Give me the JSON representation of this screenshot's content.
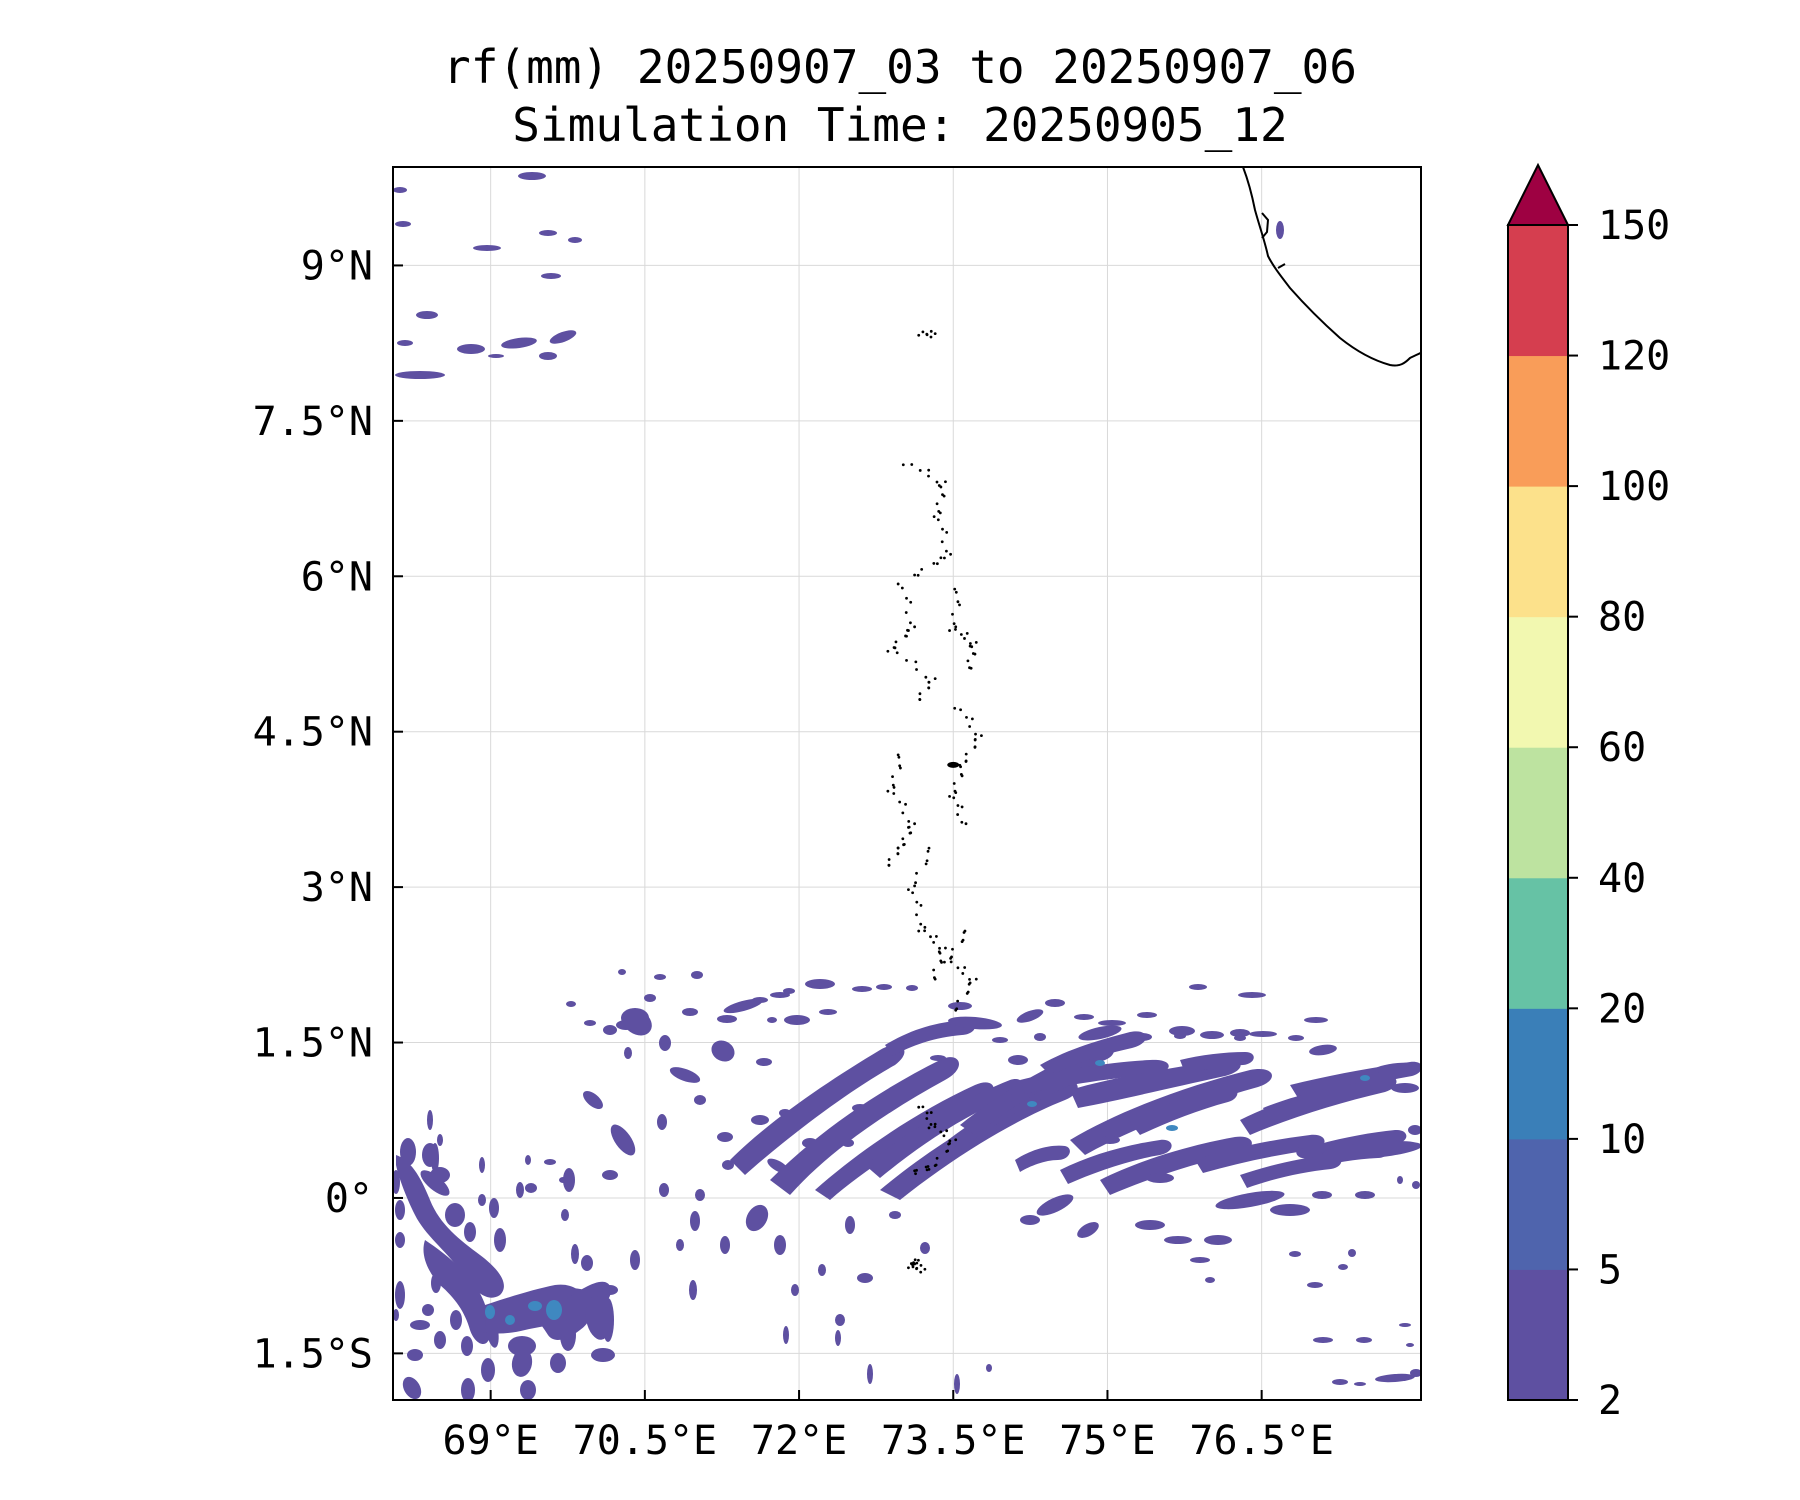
{
  "title": {
    "line1": "rf(mm) 20250907_03 to 20250907_06",
    "line2": "Simulation Time: 20250905_12"
  },
  "map": {
    "lon_range": [
      68.05,
      78.05
    ],
    "lat_range": [
      -1.95,
      9.95
    ],
    "lon_ticks": [
      {
        "value": 69.0,
        "label": "69°E"
      },
      {
        "value": 70.5,
        "label": "70.5°E"
      },
      {
        "value": 72.0,
        "label": "72°E"
      },
      {
        "value": 73.5,
        "label": "73.5°E"
      },
      {
        "value": 75.0,
        "label": "75°E"
      },
      {
        "value": 76.5,
        "label": "76.5°E"
      }
    ],
    "lat_ticks": [
      {
        "value": 9.0,
        "label": "9°N"
      },
      {
        "value": 7.5,
        "label": "7.5°N"
      },
      {
        "value": 6.0,
        "label": "6°N"
      },
      {
        "value": 4.5,
        "label": "4.5°N"
      },
      {
        "value": 3.0,
        "label": "3°N"
      },
      {
        "value": 1.5,
        "label": "1.5°N"
      },
      {
        "value": 0.0,
        "label": "0°"
      },
      {
        "value": -1.5,
        "label": "1.5°S"
      }
    ],
    "grid": true,
    "colors": {
      "rain_low": "#5e50a1",
      "rain_mid": "#3f88c0",
      "coast": "#000000"
    }
  },
  "colorbar": {
    "extend": "max",
    "levels": [
      {
        "label": "2",
        "color": "#5e50a1"
      },
      {
        "label": "5",
        "color": "#4f64ad"
      },
      {
        "label": "10",
        "color": "#3a7fb8"
      },
      {
        "label": "20",
        "color": "#66c2a5"
      },
      {
        "label": "40",
        "color": "#bde3a0"
      },
      {
        "label": "60",
        "color": "#f2f8b0"
      },
      {
        "label": "80",
        "color": "#fce18b"
      },
      {
        "label": "100",
        "color": "#f99d59"
      },
      {
        "label": "120",
        "color": "#d53e4f"
      },
      {
        "label": "150",
        "color": "#9e0142"
      }
    ]
  }
}
